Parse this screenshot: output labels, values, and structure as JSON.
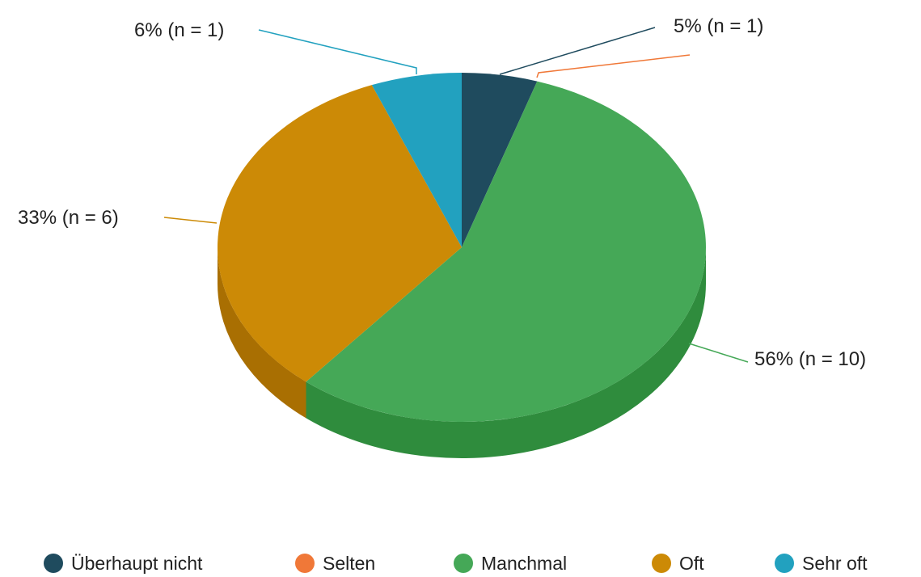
{
  "chart_data": {
    "type": "pie",
    "title": "",
    "style": "3d",
    "legend_position": "bottom",
    "slices": [
      {
        "name": "Überhaupt nicht",
        "percent": 5,
        "n": 1,
        "label": "5% (n = 1)",
        "color": "#1f4b5e",
        "side_color": "#173a49"
      },
      {
        "name": "Selten",
        "percent": 0,
        "n": 0,
        "label": "",
        "color": "#f07838",
        "side_color": "#c9602a"
      },
      {
        "name": "Manchmal",
        "percent": 56,
        "n": 10,
        "label": "56% (n = 10)",
        "color": "#45a857",
        "side_color": "#2f8c3d"
      },
      {
        "name": "Oft",
        "percent": 33,
        "n": 6,
        "label": "33% (n = 6)",
        "color": "#cc8a06",
        "side_color": "#a96f02"
      },
      {
        "name": "Sehr oft",
        "percent": 6,
        "n": 1,
        "label": "6% (n = 1)",
        "color": "#22a1bf",
        "side_color": "#1a8199"
      }
    ]
  }
}
